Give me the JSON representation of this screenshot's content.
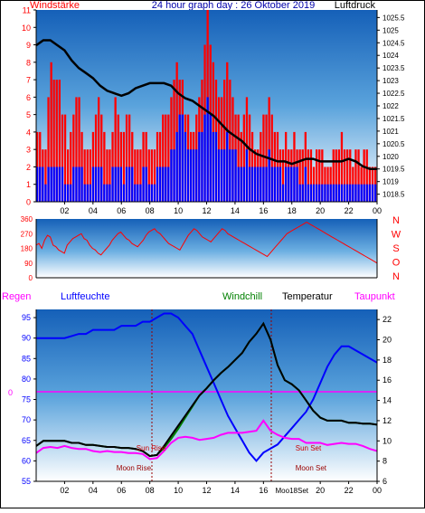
{
  "header": {
    "left_label": "Windstärke",
    "title": "24 hour graph day : 26 Oktober 2019",
    "right_label": "Luftdruck"
  },
  "labels_bottom": {
    "regen": "Regen",
    "luftfeuchte": "Luftfeuchte",
    "windchill": "Windchill",
    "temperatur": "Temperatur",
    "taupunkt": "Taupunkt"
  },
  "colors": {
    "wind_bar": "#ff0000",
    "gust_bar": "#0000ff",
    "pressure": "#000000",
    "humidity": "#0000ff",
    "temperature": "#000000",
    "windchill": "#008000",
    "dewpoint": "#ff00ff",
    "rain": "#ff00ff",
    "sun": "#cc0000",
    "moon": "#990000",
    "header_left": "#ff0000",
    "header_center": "#0000aa",
    "luftfeuchte": "#0000ff",
    "windchill_label": "#008000",
    "taupunkt_label": "#ff00ff"
  },
  "chart_data": [
    {
      "type": "bar",
      "name": "wind",
      "x_tick_labels": [
        "02",
        "04",
        "06",
        "08",
        "10",
        "12",
        "14",
        "16",
        "18",
        "20",
        "22",
        "00"
      ],
      "y_left_ticks": [
        "0",
        "1",
        "2",
        "3",
        "4",
        "5",
        "6",
        "7",
        "8",
        "9",
        "10",
        "11"
      ],
      "y_left_range": [
        0,
        11
      ],
      "y_right_ticks": [
        "1018.5",
        "1019",
        "1019.5",
        "1020",
        "1020.5",
        "1021",
        "1021.5",
        "1022",
        "1022.5",
        "1023",
        "1023.5",
        "1024",
        "1024.5",
        "1025",
        "1025.5"
      ],
      "y_right_range": [
        1018.2,
        1025.8
      ],
      "pressure_series": {
        "x": [
          0,
          0.5,
          1,
          1.5,
          2,
          2.5,
          3,
          3.5,
          4,
          4.5,
          5,
          5.5,
          6,
          6.5,
          7,
          7.5,
          8,
          8.5,
          9,
          9.5,
          10,
          10.5,
          11,
          11.5,
          12,
          12.5,
          13,
          13.5,
          14,
          14.5,
          15,
          15.5,
          16,
          16.5,
          17,
          17.5,
          18,
          18.5,
          19,
          19.5,
          20,
          20.5,
          21,
          21.5,
          22,
          22.5,
          23,
          23.5,
          24
        ],
        "y": [
          1024.4,
          1024.6,
          1024.6,
          1024.4,
          1024.2,
          1023.8,
          1023.5,
          1023.3,
          1023.1,
          1022.8,
          1022.6,
          1022.5,
          1022.4,
          1022.5,
          1022.7,
          1022.8,
          1022.9,
          1022.9,
          1022.9,
          1022.8,
          1022.5,
          1022.3,
          1022.2,
          1022.0,
          1021.8,
          1021.6,
          1021.3,
          1021.0,
          1020.8,
          1020.6,
          1020.3,
          1020.1,
          1020.0,
          1019.9,
          1019.8,
          1019.8,
          1019.7,
          1019.8,
          1019.9,
          1019.9,
          1019.8,
          1019.8,
          1019.8,
          1019.8,
          1019.9,
          1019.8,
          1019.6,
          1019.5,
          1019.5
        ]
      },
      "wind_max": [
        4,
        4,
        3,
        3,
        6,
        8,
        7,
        7,
        7,
        5,
        5,
        3,
        4,
        5,
        6,
        6,
        4,
        3,
        3,
        3,
        4,
        5,
        6,
        5,
        4,
        3,
        3,
        4,
        6,
        5,
        4,
        4,
        5,
        5,
        4,
        3,
        3,
        3,
        4,
        4,
        3,
        3,
        3,
        4,
        4,
        5,
        5,
        5,
        6,
        7,
        8,
        7,
        7,
        5,
        5,
        4,
        4,
        5,
        6,
        7,
        9,
        11,
        9,
        8,
        7,
        6,
        6,
        7,
        8,
        7,
        6,
        5,
        5,
        4,
        5,
        6,
        5,
        4,
        3,
        3,
        4,
        5,
        5,
        6,
        5,
        4,
        4,
        3,
        3,
        4,
        3,
        3,
        4,
        3,
        3,
        3,
        4,
        3,
        3,
        2,
        3,
        3,
        3,
        2,
        2,
        2,
        3,
        3,
        3,
        4,
        3,
        3,
        3,
        2,
        3,
        3,
        2,
        3,
        3,
        2,
        2,
        2
      ],
      "gust_max": [
        2,
        2,
        2,
        1,
        2,
        2,
        2,
        2,
        2,
        2,
        1,
        1,
        1,
        2,
        2,
        2,
        2,
        1,
        1,
        1,
        2,
        2,
        2,
        2,
        1,
        1,
        1,
        2,
        2,
        2,
        2,
        1,
        2,
        2,
        2,
        1,
        1,
        1,
        2,
        2,
        1,
        1,
        1,
        2,
        2,
        2,
        2,
        2,
        3,
        3,
        4,
        5,
        5,
        4,
        3,
        3,
        3,
        3,
        4,
        4,
        5,
        6,
        5,
        4,
        4,
        3,
        3,
        3,
        4,
        3,
        3,
        3,
        2,
        2,
        2,
        3,
        2,
        2,
        2,
        2,
        2,
        2,
        2,
        3,
        2,
        2,
        2,
        2,
        1,
        2,
        2,
        2,
        2,
        2,
        1,
        1,
        2,
        1,
        1,
        1,
        1,
        1,
        1,
        1,
        1,
        1,
        1,
        1,
        1,
        1,
        1,
        1,
        1,
        1,
        1,
        1,
        1,
        1,
        1,
        1,
        1,
        1
      ]
    },
    {
      "type": "line",
      "name": "wind_direction",
      "y_left_ticks": [
        "0",
        "90",
        "180",
        "270",
        "360"
      ],
      "y_range": [
        0,
        360
      ],
      "y_right_labels": [
        "N",
        "W",
        "S",
        "O",
        "N"
      ],
      "direction_deg": [
        200,
        210,
        180,
        230,
        260,
        250,
        200,
        190,
        170,
        160,
        150,
        200,
        220,
        240,
        250,
        260,
        270,
        240,
        230,
        200,
        180,
        170,
        150,
        140,
        160,
        180,
        200,
        230,
        250,
        270,
        280,
        260,
        240,
        230,
        210,
        200,
        190,
        210,
        230,
        260,
        280,
        290,
        300,
        280,
        270,
        250,
        230,
        210,
        200,
        190,
        180,
        170,
        200,
        230,
        260,
        280,
        300,
        290,
        270,
        250,
        240,
        230,
        220,
        240,
        260,
        280,
        300,
        290,
        270,
        260,
        250,
        240,
        230,
        220,
        210,
        200,
        190,
        180,
        170,
        160,
        150,
        140,
        130,
        150,
        170,
        190,
        210,
        230,
        250,
        270,
        280,
        290,
        300,
        310,
        320,
        330,
        340,
        330,
        320,
        310,
        300,
        290,
        280,
        270,
        260,
        250,
        240,
        230,
        220,
        210,
        200,
        190,
        180,
        170,
        160,
        150,
        140,
        130,
        120,
        110,
        100,
        90
      ]
    },
    {
      "type": "line",
      "name": "temperature_humidity",
      "x_tick_labels": [
        "02",
        "04",
        "06",
        "08",
        "10",
        "12",
        "14",
        "16",
        "18",
        "20",
        "22",
        "00"
      ],
      "y_left_ticks": [
        "55",
        "60",
        "65",
        "70",
        "75",
        "80",
        "85",
        "90",
        "95"
      ],
      "y_left_range": [
        55,
        97
      ],
      "y_left_zero_label": "0",
      "y_right_ticks": [
        "6",
        "8",
        "10",
        "12",
        "14",
        "16",
        "18",
        "20",
        "22"
      ],
      "y_right_range": [
        6,
        23
      ],
      "annotations": [
        {
          "label": "Moon Rise",
          "x": 8.2
        },
        {
          "label": "Sun Rise",
          "x": 8.2
        },
        {
          "label": "Sun Set",
          "x": 18.0
        },
        {
          "label": "Moon Set",
          "x": 18.0
        }
      ],
      "bottom_extra_label": "Moo18Set",
      "x": [
        0,
        0.5,
        1,
        1.5,
        2,
        2.5,
        3,
        3.5,
        4,
        4.5,
        5,
        5.5,
        6,
        6.5,
        7,
        7.5,
        8,
        8.5,
        9,
        9.5,
        10,
        10.5,
        11,
        11.5,
        12,
        12.5,
        13,
        13.5,
        14,
        14.5,
        15,
        15.5,
        16,
        16.5,
        17,
        17.5,
        18,
        18.5,
        19,
        19.5,
        20,
        20.5,
        21,
        21.5,
        22,
        22.5,
        23,
        23.5,
        24
      ],
      "series": [
        {
          "name": "Luftfeuchte",
          "values": [
            90,
            90,
            90,
            90,
            90,
            90.5,
            91,
            91,
            92,
            92,
            92,
            92,
            93,
            93,
            93,
            94,
            94,
            95,
            96,
            96,
            95,
            93,
            91,
            87,
            83,
            79,
            75,
            71,
            68,
            65,
            62,
            60,
            62,
            63,
            64,
            66,
            68,
            70,
            72,
            75,
            79,
            83,
            86,
            88,
            88,
            87,
            86,
            85,
            84
          ]
        },
        {
          "name": "Temperatur",
          "values": [
            9.5,
            10,
            10,
            10,
            10,
            9.8,
            9.8,
            9.6,
            9.6,
            9.5,
            9.4,
            9.4,
            9.3,
            9.3,
            9.2,
            9.0,
            8.5,
            8.6,
            9.5,
            10.5,
            11.5,
            12.5,
            13.5,
            14.5,
            15.2,
            16,
            16.7,
            17.3,
            18,
            18.7,
            19.8,
            20.6,
            21.6,
            20,
            17.5,
            16,
            15.6,
            15,
            14,
            13,
            12.3,
            12,
            12,
            12,
            11.8,
            11.8,
            11.7,
            11.7,
            11.6
          ]
        },
        {
          "name": "Windchill",
          "values": [
            9.5,
            10,
            10,
            10,
            10,
            9.8,
            9.8,
            9.6,
            9.6,
            9.5,
            9.4,
            9.4,
            9.3,
            9.3,
            9.2,
            9.0,
            8.5,
            8.6,
            9.3,
            10.2,
            11.2,
            12.3,
            13.4,
            14.5,
            15.2,
            16,
            16.7,
            17.3,
            18,
            18.7,
            19.8,
            20.6,
            21.6,
            20,
            17.5,
            16,
            15.6,
            15,
            14,
            13,
            12.3,
            12,
            12,
            12,
            11.8,
            11.8,
            11.7,
            11.7,
            11.6
          ]
        },
        {
          "name": "Taupunkt",
          "values": [
            8.8,
            9.3,
            9.4,
            9.3,
            9.5,
            9.3,
            9.2,
            9.2,
            9.0,
            8.9,
            9.0,
            8.9,
            8.9,
            8.8,
            8.8,
            8.7,
            8.2,
            8.3,
            9.0,
            9.8,
            10.3,
            10.4,
            10.3,
            10.1,
            10.2,
            10.3,
            10.6,
            10.8,
            10.8,
            10.8,
            10.9,
            11.0,
            12.0,
            11.0,
            10.6,
            10.3,
            10.2,
            10.2,
            9.8,
            9.8,
            9.8,
            9.6,
            9.7,
            9.8,
            9.7,
            9.7,
            9.5,
            9.2,
            9.0
          ]
        },
        {
          "name": "Regen",
          "values": [
            0,
            0,
            0,
            0,
            0,
            0,
            0,
            0,
            0,
            0,
            0,
            0,
            0,
            0,
            0,
            0,
            0,
            0,
            0,
            0,
            0,
            0,
            0,
            0,
            0,
            0,
            0,
            0,
            0,
            0,
            0,
            0,
            0,
            0,
            0,
            0,
            0,
            0,
            0,
            0,
            0,
            0,
            0,
            0,
            0,
            0,
            0,
            0,
            0
          ]
        }
      ]
    }
  ]
}
